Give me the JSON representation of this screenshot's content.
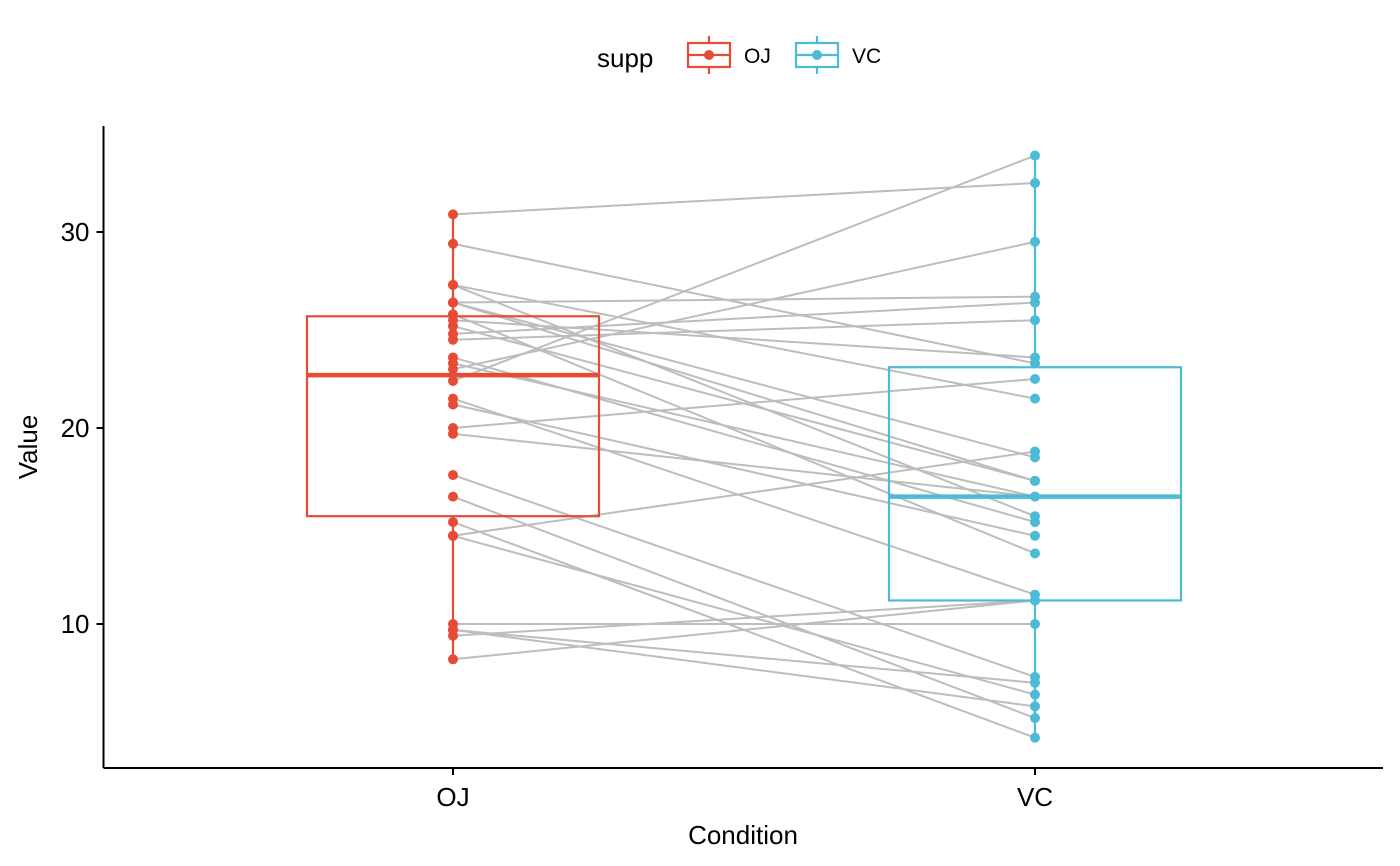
{
  "chart_data": {
    "type": "boxplot-paired",
    "title": "",
    "xlabel": "Condition",
    "ylabel": "Value",
    "ylim": [
      3.0,
      35.5
    ],
    "yticks": [
      10,
      20,
      30
    ],
    "categories": [
      "OJ",
      "VC"
    ],
    "legend": {
      "title": "supp",
      "position": "top",
      "entries": [
        {
          "name": "OJ",
          "color": "#E64B35"
        },
        {
          "name": "VC",
          "color": "#4DBBD5"
        }
      ]
    },
    "line_color": "#BDBDBD",
    "boxes": [
      {
        "name": "OJ",
        "color": "#E64B35",
        "q1": 15.5,
        "median": 22.7,
        "q3": 25.7,
        "min": 8.2,
        "max": 30.9
      },
      {
        "name": "VC",
        "color": "#4DBBD5",
        "q1": 11.2,
        "median": 16.5,
        "q3": 23.1,
        "min": 4.2,
        "max": 33.9
      }
    ],
    "pairs": [
      [
        15.2,
        4.2
      ],
      [
        21.5,
        11.5
      ],
      [
        17.6,
        7.3
      ],
      [
        9.7,
        5.8
      ],
      [
        14.5,
        6.4
      ],
      [
        10.0,
        10.0
      ],
      [
        8.2,
        11.2
      ],
      [
        9.4,
        11.2
      ],
      [
        16.5,
        5.2
      ],
      [
        9.7,
        7.0
      ],
      [
        19.7,
        16.5
      ],
      [
        23.3,
        16.5
      ],
      [
        23.6,
        15.2
      ],
      [
        26.4,
        17.3
      ],
      [
        20.0,
        22.5
      ],
      [
        25.2,
        17.3
      ],
      [
        25.8,
        13.6
      ],
      [
        21.2,
        14.5
      ],
      [
        14.5,
        18.8
      ],
      [
        27.3,
        15.5
      ],
      [
        25.5,
        23.6
      ],
      [
        26.4,
        18.5
      ],
      [
        22.4,
        33.9
      ],
      [
        24.5,
        25.5
      ],
      [
        24.8,
        26.4
      ],
      [
        30.9,
        32.5
      ],
      [
        26.4,
        26.7
      ],
      [
        27.3,
        21.5
      ],
      [
        29.4,
        23.3
      ],
      [
        23.0,
        29.5
      ]
    ]
  }
}
